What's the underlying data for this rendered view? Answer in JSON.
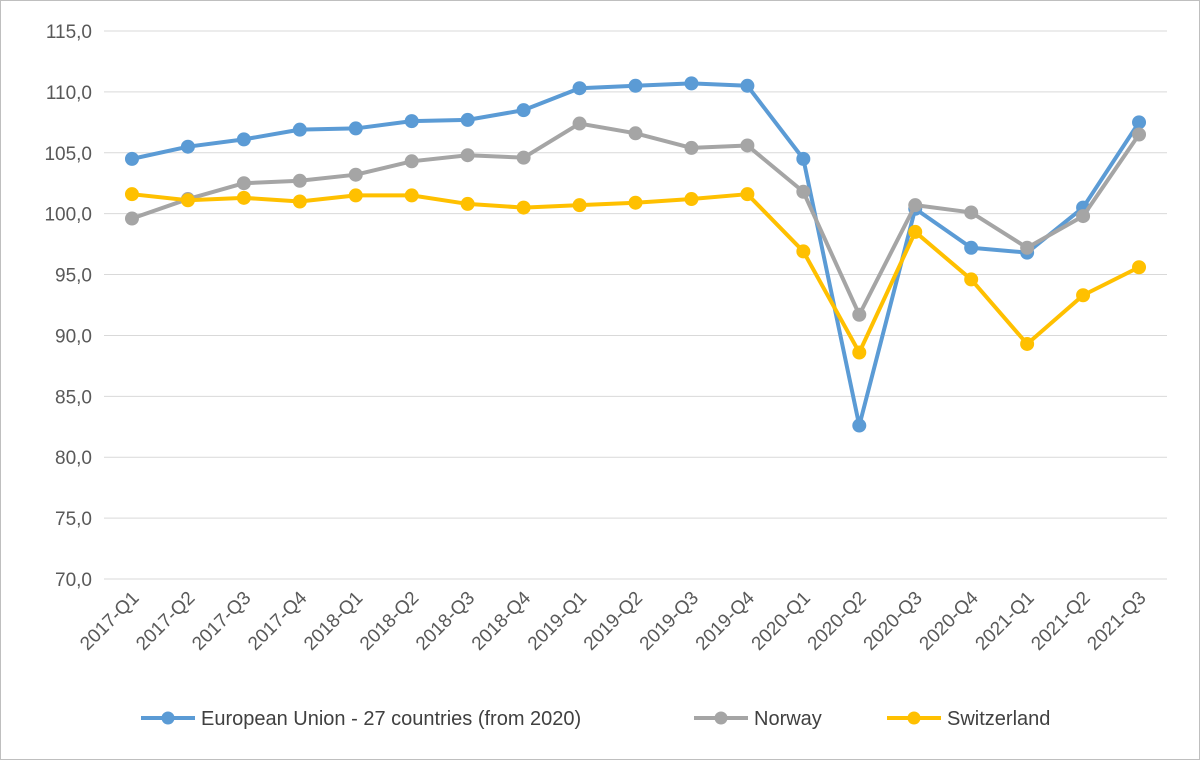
{
  "chart_data": {
    "type": "line",
    "title": "",
    "xlabel": "",
    "ylabel": "",
    "categories": [
      "2017-Q1",
      "2017-Q2",
      "2017-Q3",
      "2017-Q4",
      "2018-Q1",
      "2018-Q2",
      "2018-Q3",
      "2018-Q4",
      "2019-Q1",
      "2019-Q2",
      "2019-Q3",
      "2019-Q4",
      "2020-Q1",
      "2020-Q2",
      "2020-Q3",
      "2020-Q4",
      "2021-Q1",
      "2021-Q2",
      "2021-Q3"
    ],
    "ylim": [
      70,
      115
    ],
    "yticks": [
      "70,0",
      "75,0",
      "80,0",
      "85,0",
      "90,0",
      "95,0",
      "100,0",
      "105,0",
      "110,0",
      "115,0"
    ],
    "grid": true,
    "legend": "bottom",
    "series": [
      {
        "name": "European Union - 27 countries (from 2020)",
        "color": "#5b9bd5",
        "values": [
          104.5,
          105.5,
          106.1,
          106.9,
          107.0,
          107.6,
          107.7,
          108.5,
          110.3,
          110.5,
          110.7,
          110.5,
          104.5,
          82.6,
          100.4,
          97.2,
          96.8,
          100.5,
          107.5
        ]
      },
      {
        "name": "Norway",
        "color": "#a5a5a5",
        "values": [
          99.6,
          101.2,
          102.5,
          102.7,
          103.2,
          104.3,
          104.8,
          104.6,
          107.4,
          106.6,
          105.4,
          105.6,
          101.8,
          91.7,
          100.7,
          100.1,
          97.2,
          99.8,
          106.5
        ]
      },
      {
        "name": "Switzerland",
        "color": "#ffc000",
        "values": [
          101.6,
          101.1,
          101.3,
          101.0,
          101.5,
          101.5,
          100.8,
          100.5,
          100.7,
          100.9,
          101.2,
          101.6,
          96.9,
          88.6,
          98.5,
          94.6,
          89.3,
          93.3,
          95.6
        ]
      }
    ]
  }
}
